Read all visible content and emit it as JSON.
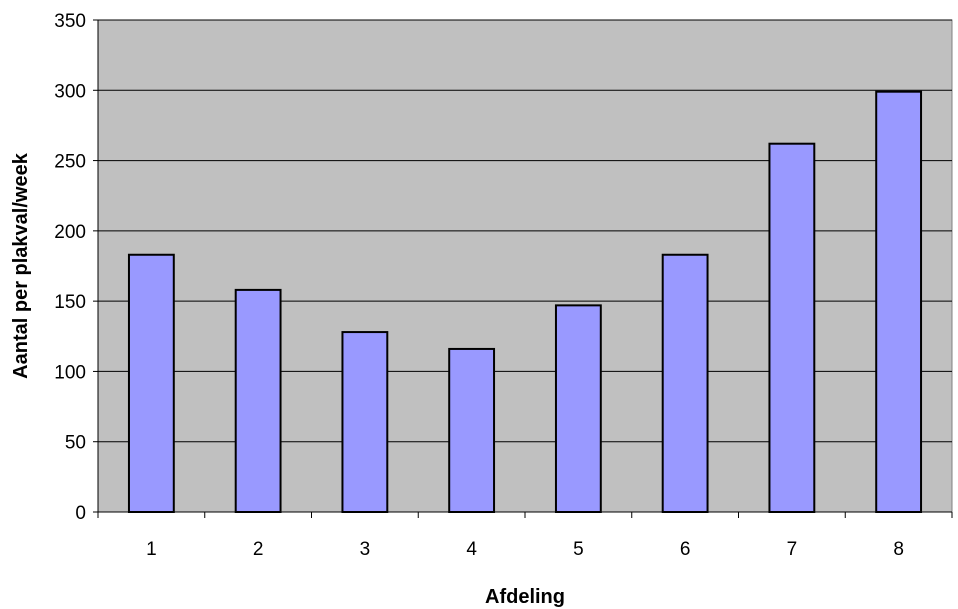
{
  "chart_data": {
    "type": "bar",
    "title": "",
    "xlabel": "Afdeling",
    "ylabel": "Aantal per plakval/week",
    "categories": [
      "1",
      "2",
      "3",
      "4",
      "5",
      "6",
      "7",
      "8"
    ],
    "values": [
      183,
      158,
      128,
      116,
      147,
      183,
      262,
      299
    ],
    "ylim": [
      0,
      350
    ],
    "yticks": [
      "0",
      "50",
      "100",
      "150",
      "200",
      "250",
      "300",
      "350"
    ],
    "grid": "horizontal",
    "legend": "none",
    "colors": {
      "plot_background": "#c0c0c0",
      "bar_fill": "#9999ff",
      "bar_stroke": "#000000",
      "grid": "#000000"
    }
  }
}
